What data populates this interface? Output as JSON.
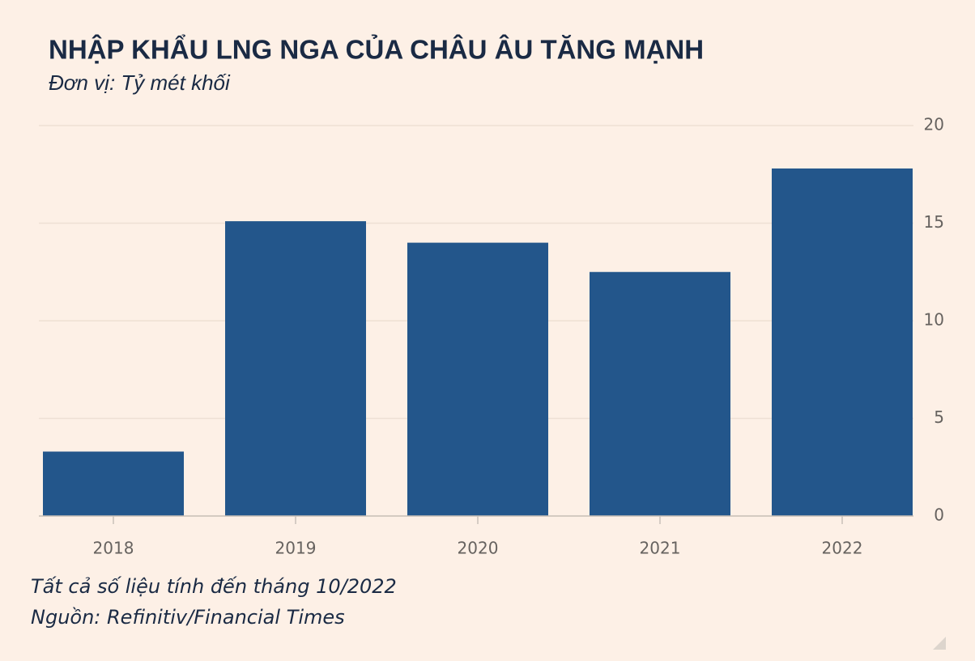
{
  "chart_data": {
    "type": "bar",
    "title": "NHẬP KHẨU LNG NGA CỦA CHÂU ÂU TĂNG MẠNH",
    "subtitle": "Đơn vị: Tỷ mét khối",
    "categories": [
      "2018",
      "2019",
      "2020",
      "2021",
      "2022"
    ],
    "values": [
      3.3,
      15.1,
      14.0,
      12.5,
      17.8
    ],
    "color": "#23568b",
    "ylim": [
      0,
      20
    ],
    "yticks": [
      0,
      5,
      10,
      15,
      20
    ],
    "grid": true,
    "notes": [
      "Tất cả số liệu tính đến tháng 10/2022",
      "Nguồn: Refinitiv/Financial Times"
    ]
  }
}
